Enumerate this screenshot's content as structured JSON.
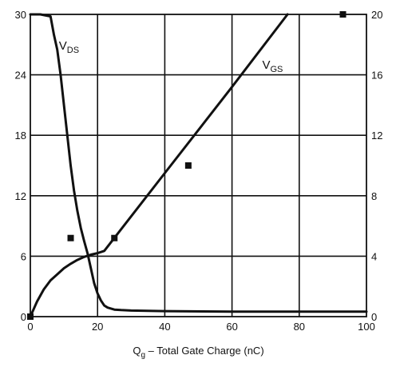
{
  "chart_data": {
    "type": "line",
    "xlabel": "Total Gate Charge (nC)",
    "xlabel_symbol": "Q",
    "xlabel_subscript": "g",
    "xlabel_dash": "–",
    "xlim": [
      0,
      100
    ],
    "ylim_left": [
      0,
      30
    ],
    "ylim_right": [
      0,
      20
    ],
    "x_ticks": [
      "0",
      "20",
      "40",
      "60",
      "80",
      "100"
    ],
    "y_left_ticks": [
      "0",
      "6",
      "12",
      "18",
      "24",
      "30"
    ],
    "y_right_ticks": [
      "0",
      "4",
      "8",
      "12",
      "16",
      "20"
    ],
    "grid": true,
    "series": [
      {
        "name": "VDS",
        "label_main": "V",
        "label_sub": "DS",
        "axis": "left",
        "color": "#111111",
        "x": [
          0,
          3,
          6,
          7,
          8,
          9,
          10,
          11,
          12,
          13,
          14,
          15,
          16,
          17,
          18,
          19,
          20,
          21,
          22,
          23,
          24,
          25,
          27,
          30,
          40,
          60,
          80,
          100
        ],
        "y": [
          30.0,
          30.0,
          29.8,
          28.0,
          26.5,
          24.0,
          21.0,
          18.0,
          15.0,
          12.5,
          10.5,
          8.8,
          7.5,
          6.3,
          4.8,
          3.3,
          2.3,
          1.6,
          1.1,
          0.9,
          0.8,
          0.7,
          0.65,
          0.6,
          0.55,
          0.5,
          0.5,
          0.5
        ]
      },
      {
        "name": "VGS",
        "label_main": "V",
        "label_sub": "GS",
        "axis": "right",
        "color": "#111111",
        "x": [
          0,
          2,
          4,
          6,
          8,
          10,
          12,
          14,
          16,
          18,
          20,
          22,
          40,
          60,
          76.5
        ],
        "y": [
          0,
          1.0,
          1.8,
          2.4,
          2.8,
          3.2,
          3.5,
          3.75,
          3.95,
          4.1,
          4.2,
          4.35,
          9.5,
          15.2,
          20.0
        ]
      }
    ],
    "markers": {
      "axis": "right",
      "color": "#111111",
      "points": [
        {
          "x": 0,
          "y": 0
        },
        {
          "x": 12,
          "y": 5.2
        },
        {
          "x": 25,
          "y": 5.2
        },
        {
          "x": 47,
          "y": 10
        },
        {
          "x": 93,
          "y": 20
        }
      ]
    }
  }
}
